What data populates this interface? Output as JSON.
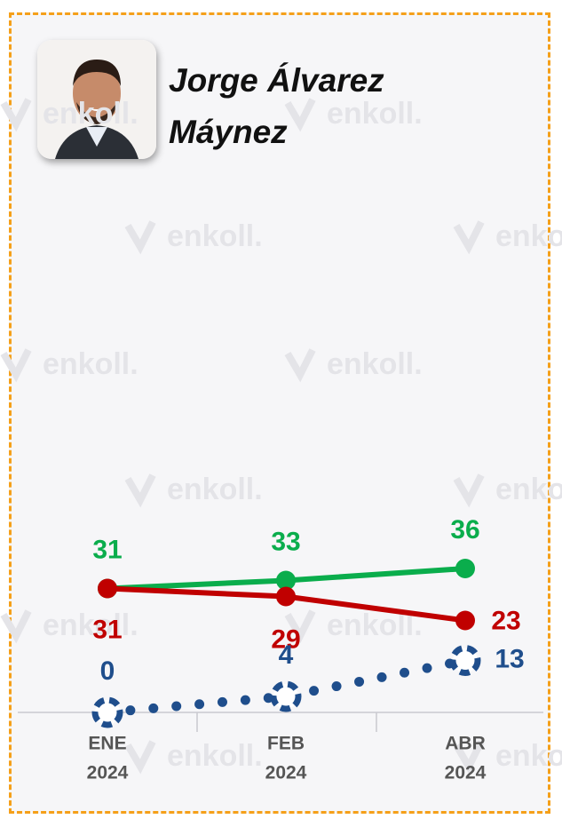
{
  "chart_data": {
    "type": "line",
    "title": "Jorge Álvarez Máynez",
    "watermark": "enkoll.",
    "categories": [
      [
        "ENE",
        "2024"
      ],
      [
        "FEB",
        "2024"
      ],
      [
        "ABR",
        "2024"
      ]
    ],
    "series": [
      {
        "color": "#0aad4c",
        "style": "solid",
        "values": [
          31,
          33,
          36
        ]
      },
      {
        "color": "#c00000",
        "style": "solid",
        "values": [
          31,
          29,
          23
        ]
      },
      {
        "color": "#1f4e8c",
        "style": "dotted",
        "values": [
          0,
          4,
          13
        ]
      }
    ],
    "ylim": [
      0,
      80
    ]
  }
}
